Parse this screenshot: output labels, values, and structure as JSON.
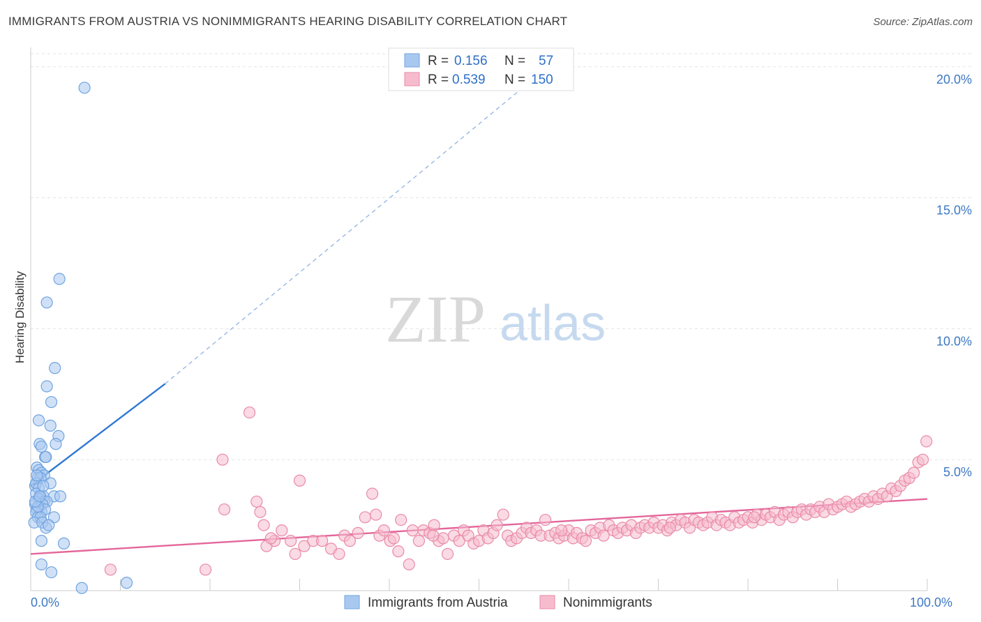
{
  "chart_data": {
    "type": "scatter",
    "title": "IMMIGRANTS FROM AUSTRIA VS NONIMMIGRANTS HEARING DISABILITY CORRELATION CHART",
    "source": "Source: ZipAtlas.com",
    "ylabel": "Hearing Disability",
    "xlim": [
      0,
      100
    ],
    "ylim": [
      0,
      20.5
    ],
    "yticks": [
      {
        "value": 5,
        "label": "5.0%"
      },
      {
        "value": 10,
        "label": "10.0%"
      },
      {
        "value": 15,
        "label": "15.0%"
      },
      {
        "value": 20,
        "label": "20.0%"
      }
    ],
    "xticks": [
      {
        "value": 0,
        "label": "0.0%"
      },
      {
        "value": 100,
        "label": "100.0%"
      }
    ],
    "xminor": [
      10,
      20,
      30,
      40,
      50,
      60,
      70,
      80,
      90,
      100
    ],
    "watermark": {
      "zip": "ZIP",
      "atlas": "atlas"
    },
    "legend": {
      "r_label": "R =",
      "n_label": "N =",
      "entries": [
        {
          "r": "0.156",
          "n": "57"
        },
        {
          "r": "0.539",
          "n": "150"
        }
      ]
    },
    "series": [
      {
        "name": "Immigrants from Austria",
        "color": "#6fa3e0",
        "fill": "#a9c8f0",
        "line_color": "#2f78d1",
        "trend": {
          "x0": 0.0,
          "y0": 4.0,
          "x1": 15.0,
          "y1": 7.9,
          "x_ext": 57.0,
          "y_ext": 19.8
        },
        "points": [
          [
            6.0,
            19.2
          ],
          [
            3.2,
            11.9
          ],
          [
            1.8,
            11.0
          ],
          [
            2.7,
            8.5
          ],
          [
            1.8,
            7.8
          ],
          [
            2.3,
            7.2
          ],
          [
            0.9,
            6.5
          ],
          [
            2.2,
            6.3
          ],
          [
            3.1,
            5.9
          ],
          [
            1.0,
            5.6
          ],
          [
            1.2,
            5.5
          ],
          [
            2.8,
            5.6
          ],
          [
            1.6,
            5.1
          ],
          [
            1.7,
            5.1
          ],
          [
            0.7,
            4.7
          ],
          [
            0.9,
            4.6
          ],
          [
            1.2,
            4.5
          ],
          [
            1.5,
            4.4
          ],
          [
            0.8,
            4.3
          ],
          [
            1.1,
            4.3
          ],
          [
            2.2,
            4.1
          ],
          [
            0.5,
            4.0
          ],
          [
            0.6,
            4.1
          ],
          [
            0.9,
            3.9
          ],
          [
            0.6,
            3.7
          ],
          [
            1.1,
            3.6
          ],
          [
            1.4,
            3.6
          ],
          [
            2.6,
            3.6
          ],
          [
            3.3,
            3.6
          ],
          [
            0.9,
            3.5
          ],
          [
            1.5,
            3.4
          ],
          [
            1.8,
            3.4
          ],
          [
            0.5,
            3.3
          ],
          [
            1.0,
            3.2
          ],
          [
            1.3,
            3.3
          ],
          [
            0.7,
            3.1
          ],
          [
            1.2,
            3.0
          ],
          [
            1.6,
            3.1
          ],
          [
            0.6,
            3.0
          ],
          [
            0.8,
            2.8
          ],
          [
            2.6,
            2.8
          ],
          [
            1.1,
            2.8
          ],
          [
            0.4,
            2.6
          ],
          [
            1.3,
            2.6
          ],
          [
            1.7,
            2.4
          ],
          [
            2.0,
            2.5
          ],
          [
            1.2,
            1.9
          ],
          [
            3.7,
            1.8
          ],
          [
            1.2,
            1.0
          ],
          [
            2.3,
            0.7
          ],
          [
            5.7,
            0.1
          ],
          [
            10.7,
            0.3
          ],
          [
            0.8,
            3.2
          ],
          [
            0.5,
            3.4
          ],
          [
            1.4,
            4.0
          ],
          [
            1.0,
            3.6
          ],
          [
            0.7,
            4.4
          ]
        ]
      },
      {
        "name": "Nonimmigrants",
        "color": "#e98aa8",
        "fill": "#f6bccd",
        "line_color": "#e3669a",
        "trend": {
          "x0": 0.0,
          "y0": 1.4,
          "x1": 100.0,
          "y1": 3.5
        },
        "points": [
          [
            8.9,
            0.8
          ],
          [
            19.5,
            0.8
          ],
          [
            21.4,
            5.0
          ],
          [
            21.6,
            3.1
          ],
          [
            24.4,
            6.8
          ],
          [
            25.2,
            3.4
          ],
          [
            25.6,
            3.0
          ],
          [
            26.0,
            2.5
          ],
          [
            26.3,
            1.7
          ],
          [
            27.2,
            1.9
          ],
          [
            28.0,
            2.3
          ],
          [
            29.0,
            1.9
          ],
          [
            29.5,
            1.4
          ],
          [
            30.0,
            4.2
          ],
          [
            30.5,
            1.7
          ],
          [
            31.5,
            1.9
          ],
          [
            32.5,
            1.9
          ],
          [
            33.5,
            1.6
          ],
          [
            34.4,
            1.4
          ],
          [
            35.0,
            2.1
          ],
          [
            35.6,
            1.9
          ],
          [
            36.5,
            2.2
          ],
          [
            37.3,
            2.8
          ],
          [
            38.1,
            3.7
          ],
          [
            38.5,
            2.9
          ],
          [
            38.9,
            2.1
          ],
          [
            39.4,
            2.3
          ],
          [
            40.1,
            1.9
          ],
          [
            40.5,
            2.0
          ],
          [
            41.0,
            1.5
          ],
          [
            41.3,
            2.7
          ],
          [
            42.2,
            1.0
          ],
          [
            42.6,
            2.3
          ],
          [
            43.3,
            1.9
          ],
          [
            43.8,
            2.3
          ],
          [
            44.5,
            2.2
          ],
          [
            45.0,
            2.5
          ],
          [
            45.5,
            1.9
          ],
          [
            46.0,
            2.0
          ],
          [
            46.5,
            1.4
          ],
          [
            47.2,
            2.1
          ],
          [
            47.8,
            1.9
          ],
          [
            48.3,
            2.3
          ],
          [
            48.8,
            2.1
          ],
          [
            49.4,
            1.8
          ],
          [
            50.0,
            1.9
          ],
          [
            50.5,
            2.3
          ],
          [
            51.0,
            2.0
          ],
          [
            51.6,
            2.2
          ],
          [
            52.0,
            2.5
          ],
          [
            52.7,
            2.9
          ],
          [
            53.2,
            2.1
          ],
          [
            53.6,
            1.9
          ],
          [
            54.2,
            2.0
          ],
          [
            54.8,
            2.2
          ],
          [
            55.3,
            2.4
          ],
          [
            55.8,
            2.2
          ],
          [
            56.4,
            2.3
          ],
          [
            56.9,
            2.1
          ],
          [
            57.4,
            2.7
          ],
          [
            57.9,
            2.1
          ],
          [
            58.5,
            2.2
          ],
          [
            58.9,
            2.0
          ],
          [
            59.5,
            2.1
          ],
          [
            60.0,
            2.3
          ],
          [
            60.5,
            2.0
          ],
          [
            60.9,
            2.2
          ],
          [
            61.5,
            2.0
          ],
          [
            61.9,
            1.9
          ],
          [
            62.5,
            2.3
          ],
          [
            63.0,
            2.2
          ],
          [
            63.5,
            2.4
          ],
          [
            63.9,
            2.1
          ],
          [
            64.5,
            2.5
          ],
          [
            65.0,
            2.3
          ],
          [
            65.5,
            2.2
          ],
          [
            66.0,
            2.4
          ],
          [
            66.5,
            2.3
          ],
          [
            67.0,
            2.5
          ],
          [
            67.5,
            2.2
          ],
          [
            68.0,
            2.4
          ],
          [
            68.5,
            2.5
          ],
          [
            69.0,
            2.4
          ],
          [
            69.5,
            2.6
          ],
          [
            70.0,
            2.4
          ],
          [
            70.5,
            2.5
          ],
          [
            71.0,
            2.3
          ],
          [
            71.5,
            2.6
          ],
          [
            72.0,
            2.5
          ],
          [
            72.5,
            2.7
          ],
          [
            73.0,
            2.6
          ],
          [
            73.5,
            2.4
          ],
          [
            74.0,
            2.7
          ],
          [
            74.5,
            2.6
          ],
          [
            75.0,
            2.5
          ],
          [
            75.5,
            2.6
          ],
          [
            76.0,
            2.8
          ],
          [
            76.5,
            2.5
          ],
          [
            77.0,
            2.7
          ],
          [
            77.5,
            2.6
          ],
          [
            78.0,
            2.5
          ],
          [
            78.5,
            2.8
          ],
          [
            79.0,
            2.6
          ],
          [
            79.5,
            2.7
          ],
          [
            80.0,
            2.8
          ],
          [
            80.5,
            2.6
          ],
          [
            81.0,
            2.9
          ],
          [
            81.5,
            2.7
          ],
          [
            82.0,
            2.9
          ],
          [
            82.5,
            2.8
          ],
          [
            83.0,
            3.0
          ],
          [
            83.5,
            2.7
          ],
          [
            84.0,
            2.9
          ],
          [
            84.5,
            3.0
          ],
          [
            85.0,
            2.8
          ],
          [
            85.5,
            3.0
          ],
          [
            86.0,
            3.1
          ],
          [
            86.5,
            2.9
          ],
          [
            87.0,
            3.1
          ],
          [
            87.5,
            3.0
          ],
          [
            88.0,
            3.2
          ],
          [
            88.5,
            3.0
          ],
          [
            89.0,
            3.3
          ],
          [
            89.5,
            3.1
          ],
          [
            90.0,
            3.2
          ],
          [
            90.5,
            3.3
          ],
          [
            91.0,
            3.4
          ],
          [
            91.5,
            3.2
          ],
          [
            92.0,
            3.3
          ],
          [
            92.5,
            3.4
          ],
          [
            93.0,
            3.5
          ],
          [
            93.5,
            3.4
          ],
          [
            94.0,
            3.6
          ],
          [
            94.5,
            3.5
          ],
          [
            95.0,
            3.7
          ],
          [
            95.5,
            3.6
          ],
          [
            96.0,
            3.9
          ],
          [
            96.5,
            3.8
          ],
          [
            97.0,
            4.0
          ],
          [
            97.5,
            4.2
          ],
          [
            98.0,
            4.3
          ],
          [
            98.5,
            4.5
          ],
          [
            99.0,
            4.9
          ],
          [
            99.5,
            5.0
          ],
          [
            99.9,
            5.7
          ],
          [
            71.3,
            2.4
          ],
          [
            80.7,
            2.8
          ],
          [
            26.8,
            2.0
          ],
          [
            44.9,
            2.1
          ],
          [
            59.2,
            2.3
          ]
        ]
      }
    ]
  }
}
